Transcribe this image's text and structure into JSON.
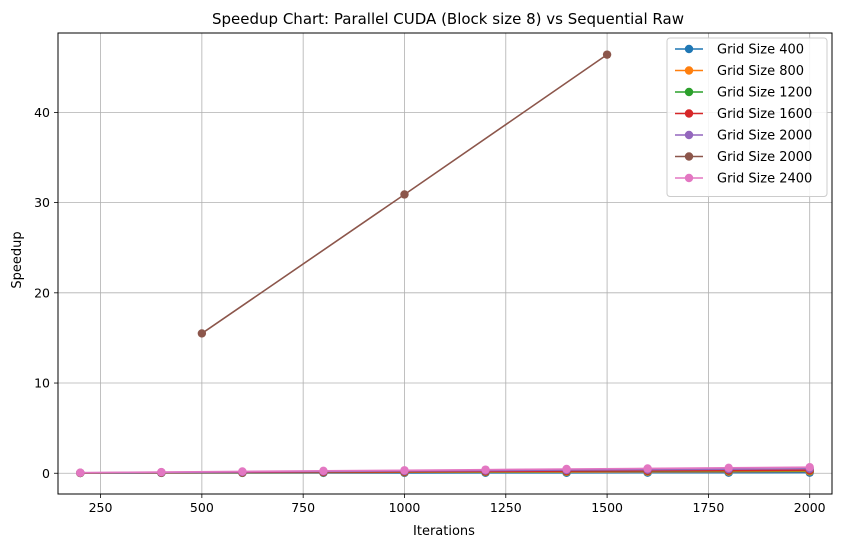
{
  "chart_data": {
    "type": "line",
    "title": "Speedup Chart: Parallel CUDA (Block size 8) vs Sequential Raw",
    "xlabel": "Iterations",
    "ylabel": "Speedup",
    "xlim": [
      145,
      2055
    ],
    "ylim": [
      -2.3,
      48.8
    ],
    "xticks": [
      250,
      500,
      750,
      1000,
      1250,
      1500,
      1750,
      2000
    ],
    "yticks": [
      0,
      10,
      20,
      30,
      40
    ],
    "grid": true,
    "legend_position": "top-right",
    "series": [
      {
        "name": "Grid Size 400",
        "color": "#1f77b4",
        "x": [
          200,
          400,
          600,
          800,
          1000,
          1200,
          1400,
          1600,
          1800,
          2000
        ],
        "y": [
          0.02,
          0.03,
          0.03,
          0.04,
          0.04,
          0.05,
          0.05,
          0.06,
          0.06,
          0.07
        ]
      },
      {
        "name": "Grid Size 800",
        "color": "#ff7f0e",
        "x": [
          200,
          400,
          600,
          800,
          1000,
          1200,
          1400,
          1600,
          1800,
          2000
        ],
        "y": [
          0.03,
          0.05,
          0.07,
          0.09,
          0.11,
          0.13,
          0.15,
          0.17,
          0.19,
          0.21
        ]
      },
      {
        "name": "Grid Size 1200",
        "color": "#2ca02c",
        "x": [
          200,
          400,
          600,
          800,
          1000,
          1200,
          1400,
          1600,
          1800,
          2000
        ],
        "y": [
          0.03,
          0.06,
          0.09,
          0.12,
          0.15,
          0.18,
          0.21,
          0.24,
          0.27,
          0.3
        ]
      },
      {
        "name": "Grid Size 1600",
        "color": "#d62728",
        "x": [
          200,
          400,
          600,
          800,
          1000,
          1200,
          1400,
          1600,
          1800,
          2000
        ],
        "y": [
          0.04,
          0.07,
          0.1,
          0.14,
          0.17,
          0.21,
          0.24,
          0.28,
          0.31,
          0.35
        ]
      },
      {
        "name": "Grid Size 2000",
        "color": "#9467bd",
        "x": [
          200,
          400,
          600,
          800,
          1000,
          1200,
          1400,
          1600,
          1800,
          2000
        ],
        "y": [
          0.05,
          0.1,
          0.15,
          0.2,
          0.25,
          0.3,
          0.35,
          0.4,
          0.45,
          0.5
        ]
      },
      {
        "name": "Grid Size 2000",
        "color": "#8c564b",
        "x": [
          500,
          1000,
          1500
        ],
        "y": [
          15.5,
          30.9,
          46.4
        ]
      },
      {
        "name": "Grid Size 2400",
        "color": "#e377c2",
        "x": [
          200,
          400,
          600,
          800,
          1000,
          1200,
          1400,
          1600,
          1800,
          2000
        ],
        "y": [
          0.06,
          0.13,
          0.2,
          0.27,
          0.33,
          0.4,
          0.47,
          0.53,
          0.6,
          0.67
        ]
      }
    ]
  }
}
